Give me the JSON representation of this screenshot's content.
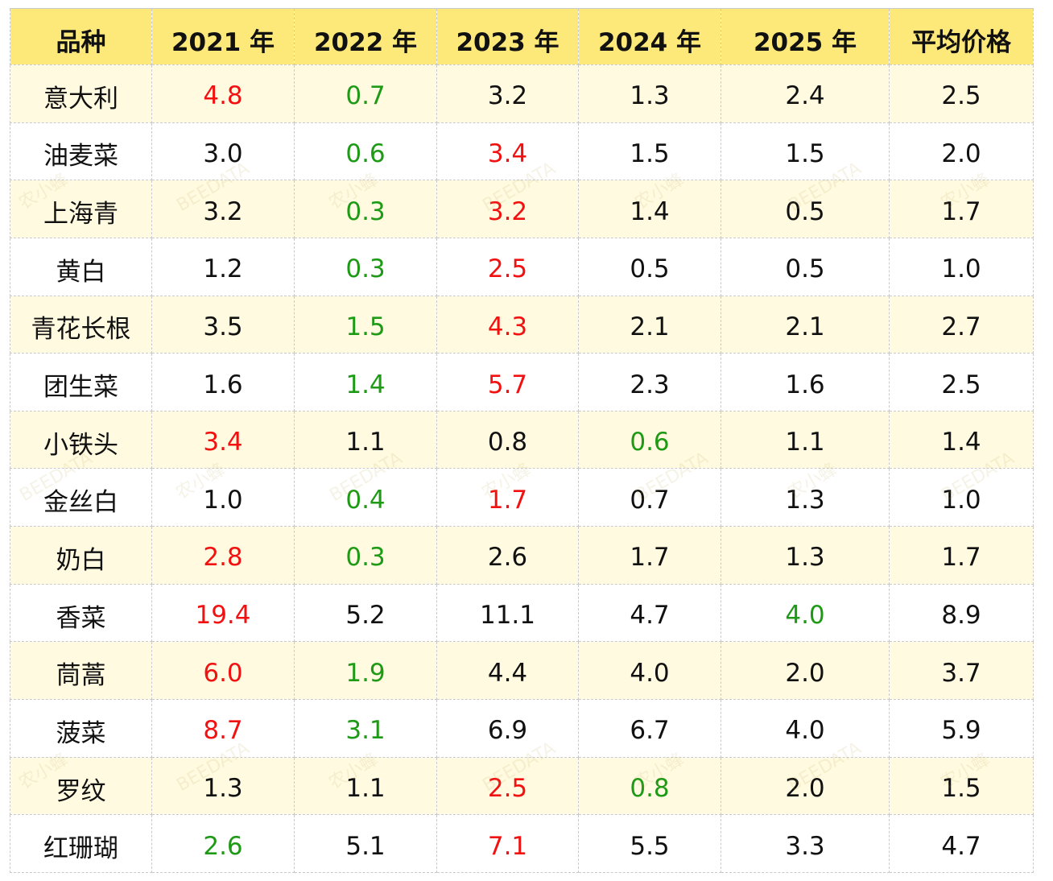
{
  "chart_data": {
    "type": "table",
    "columns": [
      "品种",
      "2021 年",
      "2022 年",
      "2023 年",
      "2024 年",
      "2025 年",
      "平均价格"
    ],
    "rows": [
      {
        "variety": "意大利",
        "values": [
          "4.8",
          "0.7",
          "3.2",
          "1.3",
          "2.4",
          "2.5"
        ],
        "highlights": [
          "red",
          "green",
          "",
          "",
          "",
          ""
        ]
      },
      {
        "variety": "油麦菜",
        "values": [
          "3.0",
          "0.6",
          "3.4",
          "1.5",
          "1.5",
          "2.0"
        ],
        "highlights": [
          "",
          "green",
          "red",
          "",
          "",
          ""
        ]
      },
      {
        "variety": "上海青",
        "values": [
          "3.2",
          "0.3",
          "3.2",
          "1.4",
          "0.5",
          "1.7"
        ],
        "highlights": [
          "",
          "green",
          "red",
          "",
          "",
          ""
        ]
      },
      {
        "variety": "黄白",
        "values": [
          "1.2",
          "0.3",
          "2.5",
          "0.5",
          "0.5",
          "1.0"
        ],
        "highlights": [
          "",
          "green",
          "red",
          "",
          "",
          ""
        ]
      },
      {
        "variety": "青花长根",
        "values": [
          "3.5",
          "1.5",
          "4.3",
          "2.1",
          "2.1",
          "2.7"
        ],
        "highlights": [
          "",
          "green",
          "red",
          "",
          "",
          ""
        ]
      },
      {
        "variety": "团生菜",
        "values": [
          "1.6",
          "1.4",
          "5.7",
          "2.3",
          "1.6",
          "2.5"
        ],
        "highlights": [
          "",
          "green",
          "red",
          "",
          "",
          ""
        ]
      },
      {
        "variety": "小铁头",
        "values": [
          "3.4",
          "1.1",
          "0.8",
          "0.6",
          "1.1",
          "1.4"
        ],
        "highlights": [
          "red",
          "",
          "",
          "green",
          "",
          ""
        ]
      },
      {
        "variety": "金丝白",
        "values": [
          "1.0",
          "0.4",
          "1.7",
          "0.7",
          "1.3",
          "1.0"
        ],
        "highlights": [
          "",
          "green",
          "red",
          "",
          "",
          ""
        ]
      },
      {
        "variety": "奶白",
        "values": [
          "2.8",
          "0.3",
          "2.6",
          "1.7",
          "1.3",
          "1.7"
        ],
        "highlights": [
          "red",
          "green",
          "",
          "",
          "",
          ""
        ]
      },
      {
        "variety": "香菜",
        "values": [
          "19.4",
          "5.2",
          "11.1",
          "4.7",
          "4.0",
          "8.9"
        ],
        "highlights": [
          "red",
          "",
          "",
          "",
          "green",
          ""
        ]
      },
      {
        "variety": "茼蒿",
        "values": [
          "6.0",
          "1.9",
          "4.4",
          "4.0",
          "2.0",
          "3.7"
        ],
        "highlights": [
          "red",
          "green",
          "",
          "",
          "",
          ""
        ]
      },
      {
        "variety": "菠菜",
        "values": [
          "8.7",
          "3.1",
          "6.9",
          "6.7",
          "4.0",
          "5.9"
        ],
        "highlights": [
          "red",
          "green",
          "",
          "",
          "",
          ""
        ]
      },
      {
        "variety": "罗纹",
        "values": [
          "1.3",
          "1.1",
          "2.5",
          "0.8",
          "2.0",
          "1.5"
        ],
        "highlights": [
          "",
          "",
          "red",
          "green",
          "",
          ""
        ]
      },
      {
        "variety": "红珊瑚",
        "values": [
          "2.6",
          "5.1",
          "7.1",
          "5.5",
          "3.3",
          "4.7"
        ],
        "highlights": [
          "green",
          "",
          "red",
          "",
          "",
          ""
        ]
      }
    ]
  },
  "colors": {
    "header_bg": "#fde97a",
    "odd_row_bg": "#fffae0",
    "even_row_bg": "#ffffff",
    "high": "#f21111",
    "low": "#1e9a16"
  },
  "watermark": {
    "text": "农小蜂",
    "subtext": "BEEDATA"
  }
}
